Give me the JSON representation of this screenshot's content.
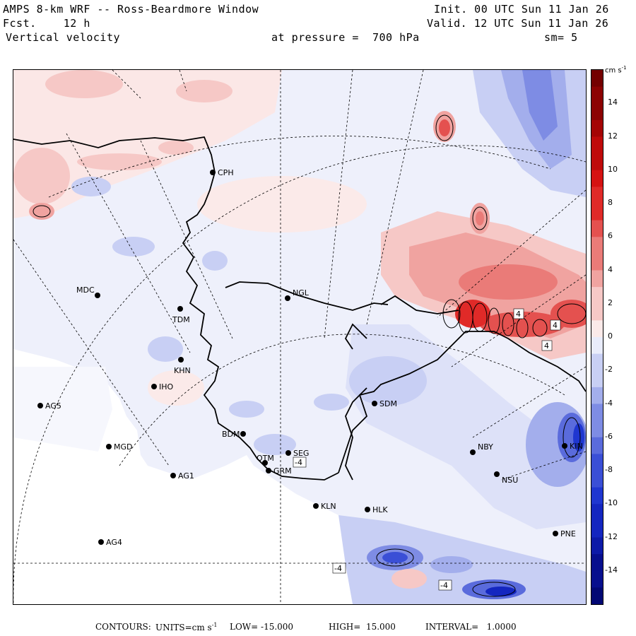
{
  "header": {
    "title": "AMPS 8-km WRF -- Ross-Beardmore Window",
    "forecast": "Fcst.    12 h",
    "field": "Vertical velocity",
    "init": "Init. 00 UTC Sun 11 Jan 26",
    "valid": "Valid. 12 UTC Sun 11 Jan 26",
    "pressure": "at pressure =  700 hPa",
    "smooth": "sm= 5"
  },
  "colorbar": {
    "units": "cm s",
    "units_exp": "-1",
    "ticks": [
      "14",
      "12",
      "10",
      "8",
      "6",
      "4",
      "2",
      "0",
      "-2",
      "-4",
      "-6",
      "-8",
      "-10",
      "-12",
      "-14"
    ],
    "range": [
      -16,
      16
    ],
    "colors_positive": [
      "#fbeae9",
      "#f6c8c6",
      "#f0a3a0",
      "#ea7b78",
      "#e4514f",
      "#e02a28",
      "#d51212",
      "#bf0a0a",
      "#a50505",
      "#8c0202",
      "#740000"
    ],
    "colors_negative": [
      "#e9ecfb",
      "#c8cff4",
      "#a3aeec",
      "#7e8ce4",
      "#5a6bdc",
      "#3a4fd6",
      "#1f36d0",
      "#1426c0",
      "#0d1aa8",
      "#070f8e",
      "#020874"
    ]
  },
  "stations": [
    {
      "id": "CPH"
    },
    {
      "id": "NGL"
    },
    {
      "id": "MDC"
    },
    {
      "id": "TDM"
    },
    {
      "id": "KHN"
    },
    {
      "id": "IHO"
    },
    {
      "id": "AG5"
    },
    {
      "id": "SDM"
    },
    {
      "id": "BDM"
    },
    {
      "id": "MGD"
    },
    {
      "id": "SEG"
    },
    {
      "id": "OTM"
    },
    {
      "id": "GRM"
    },
    {
      "id": "AG1"
    },
    {
      "id": "NBY"
    },
    {
      "id": "NSU"
    },
    {
      "id": "KLN"
    },
    {
      "id": "HLK"
    },
    {
      "id": "AG4"
    },
    {
      "id": "PNE"
    },
    {
      "id": "KIN"
    }
  ],
  "contour_labels": [
    "4",
    "4",
    "4",
    "-4",
    "-4",
    "-4"
  ],
  "footer": {
    "contours": "CONTOURS:",
    "units_label": "UNITS=cm s",
    "units_exp": "-1",
    "low": "LOW= -15.000",
    "high": "HIGH=  15.000",
    "interval": "INTERVAL=   1.0000"
  }
}
